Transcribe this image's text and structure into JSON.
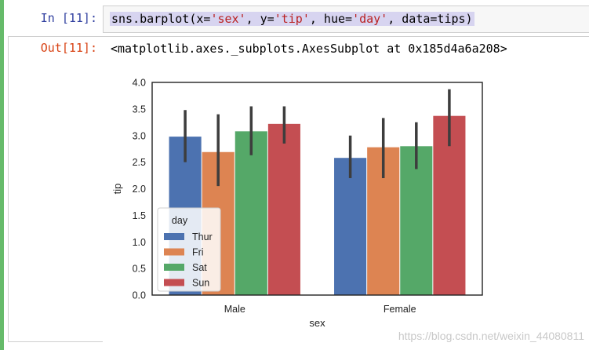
{
  "cell": {
    "in_prompt": "In  [11]:",
    "out_prompt": "Out[11]:",
    "code": {
      "fn": "sns.barplot(x=",
      "x_arg": "'sex'",
      "sep1": ", y=",
      "y_arg": "'tip'",
      "sep2": ", hue=",
      "hue_arg": "'day'",
      "sep3": ", data=tips)"
    },
    "repr": "<matplotlib.axes._subplots.AxesSubplot at 0x185d4a6a208>"
  },
  "chart_data": {
    "type": "bar",
    "categories": [
      "Male",
      "Female"
    ],
    "xlabel": "sex",
    "ylabel": "tip",
    "ylim": [
      0,
      4.0
    ],
    "yticks": [
      "0.0",
      "0.5",
      "1.0",
      "1.5",
      "2.0",
      "2.5",
      "3.0",
      "3.5",
      "4.0"
    ],
    "grid": false,
    "legend": {
      "title": "day",
      "placement": "lower-left"
    },
    "series": [
      {
        "name": "Thur",
        "color": "#4c72b0",
        "values": [
          2.98,
          2.58
        ],
        "ci_low": [
          2.5,
          2.2
        ],
        "ci_high": [
          3.48,
          3.0
        ]
      },
      {
        "name": "Fri",
        "color": "#dd8452",
        "values": [
          2.69,
          2.78
        ],
        "ci_low": [
          2.05,
          2.2
        ],
        "ci_high": [
          3.4,
          3.33
        ]
      },
      {
        "name": "Sat",
        "color": "#55a868",
        "values": [
          3.08,
          2.8
        ],
        "ci_low": [
          2.63,
          2.37
        ],
        "ci_high": [
          3.55,
          3.25
        ]
      },
      {
        "name": "Sun",
        "color": "#c44e52",
        "values": [
          3.22,
          3.37
        ],
        "ci_low": [
          2.85,
          2.8
        ],
        "ci_high": [
          3.55,
          3.87
        ]
      }
    ]
  },
  "watermark": "https://blog.csdn.net/weixin_44080811"
}
